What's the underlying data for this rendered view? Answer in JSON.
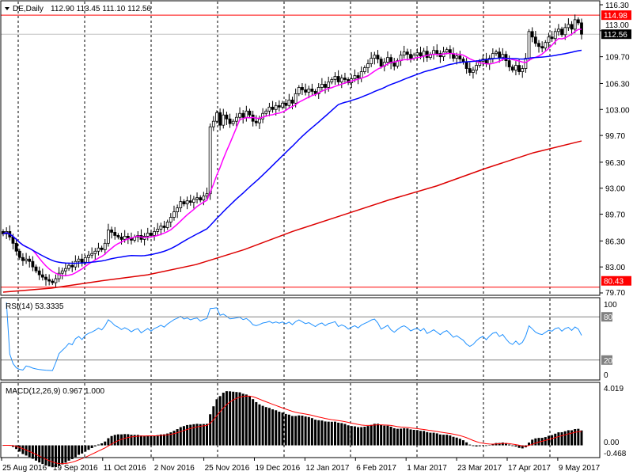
{
  "chart_data": {
    "type": "candlestick",
    "symbol": "DE,Daily",
    "ohlc_readout": "112.90 113.45 111.10 112.56",
    "price_ticks": [
      "116.30",
      "113.00",
      "109.70",
      "106.30",
      "103.00",
      "99.70",
      "96.30",
      "93.00",
      "89.70",
      "86.30",
      "83.00",
      "79.70"
    ],
    "ylim": [
      79.7,
      116.3
    ],
    "close": [
      87.2,
      87.5,
      86.8,
      86.0,
      85.0,
      84.2,
      83.8,
      84.0,
      83.7,
      83.0,
      82.5,
      82.0,
      81.7,
      81.4,
      81.2,
      81.0,
      81.5,
      82.2,
      82.5,
      82.8,
      83.2,
      83.0,
      83.7,
      84.0,
      83.6,
      84.2,
      84.5,
      84.7,
      85.0,
      85.4,
      85.2,
      86.0,
      87.7,
      87.4,
      87.0,
      86.8,
      86.5,
      86.9,
      86.7,
      86.4,
      86.8,
      87.0,
      86.5,
      86.9,
      87.3,
      87.0,
      87.5,
      87.8,
      88.2,
      88.0,
      88.7,
      89.3,
      90.0,
      90.5,
      91.3,
      91.0,
      91.4,
      91.2,
      91.6,
      91.8,
      91.5,
      92.0,
      92.3,
      100.8,
      101.5,
      102.6,
      101.0,
      102.3,
      101.8,
      101.2,
      101.5,
      102.0,
      102.5,
      102.0,
      102.8,
      102.3,
      101.5,
      101.3,
      101.8,
      102.5,
      102.8,
      103.3,
      103.0,
      103.5,
      103.3,
      103.8,
      103.5,
      104.2,
      103.8,
      105.0,
      105.8,
      105.5,
      105.2,
      105.6,
      105.3,
      105.0,
      105.8,
      106.2,
      105.8,
      106.5,
      106.8,
      107.2,
      106.5,
      107.0,
      106.8,
      106.4,
      106.9,
      107.3,
      107.0,
      107.8,
      108.3,
      108.8,
      109.5,
      109.9,
      109.4,
      108.5,
      109.0,
      109.6,
      108.9,
      108.5,
      109.2,
      109.9,
      110.3,
      110.0,
      109.5,
      109.9,
      110.2,
      109.8,
      110.4,
      109.6,
      110.0,
      110.5,
      110.1,
      109.7,
      110.3,
      110.6,
      110.1,
      109.5,
      109.8,
      109.4,
      109.0,
      108.2,
      107.7,
      108.0,
      108.6,
      109.1,
      109.4,
      108.8,
      109.5,
      110.1,
      110.3,
      109.6,
      110.0,
      109.2,
      108.4,
      108.0,
      108.6,
      107.8,
      108.2,
      109.5,
      112.9,
      112.2,
      111.4,
      111.0,
      110.8,
      111.5,
      112.2,
      112.0,
      112.9,
      113.2,
      112.5,
      113.4,
      113.8,
      113.2,
      114.4,
      114.0,
      112.56
    ],
    "ma_long": [
      79.8,
      80.3,
      81.2,
      82.0,
      83.3,
      85.2,
      87.5,
      89.5,
      91.5,
      93.3,
      95.5,
      97.5,
      99.0
    ],
    "colors": {
      "ma_fast": "#ff00ff",
      "ma_mid": "#0000ff",
      "ma_long": "#dd0000",
      "rsi": "#1e90ff",
      "macd_signal": "#ff0000",
      "candle": "#000000"
    },
    "levels": [
      {
        "label": "114.98",
        "value": 114.98,
        "color": "#ff0000"
      },
      {
        "label": "112.56",
        "value": 112.56,
        "color": "#000000",
        "line": "#c0c0c0"
      },
      {
        "label": "80.43",
        "value": 80.43,
        "color": "#ff0000"
      }
    ],
    "rsi": {
      "label": "RSI(14) 53.3335",
      "ticks": [
        "100",
        "80",
        "20",
        "0"
      ],
      "levels": [
        80,
        20
      ]
    },
    "macd": {
      "label": "MACD(12,26,9) 0.967 1.000",
      "ticks": [
        "4.019",
        "0.00",
        "-0.468"
      ],
      "ylim": [
        -0.468,
        4.019
      ]
    },
    "date_labels": [
      "25 Aug 2016",
      "19 Sep 2016",
      "11 Oct 2016",
      "2 Nov 2016",
      "25 Nov 2016",
      "19 Dec 2016",
      "12 Jan 2017",
      "6 Feb 2017",
      "1 Mar 2017",
      "23 Mar 2017",
      "17 Apr 2017",
      "9 May 2017"
    ]
  }
}
